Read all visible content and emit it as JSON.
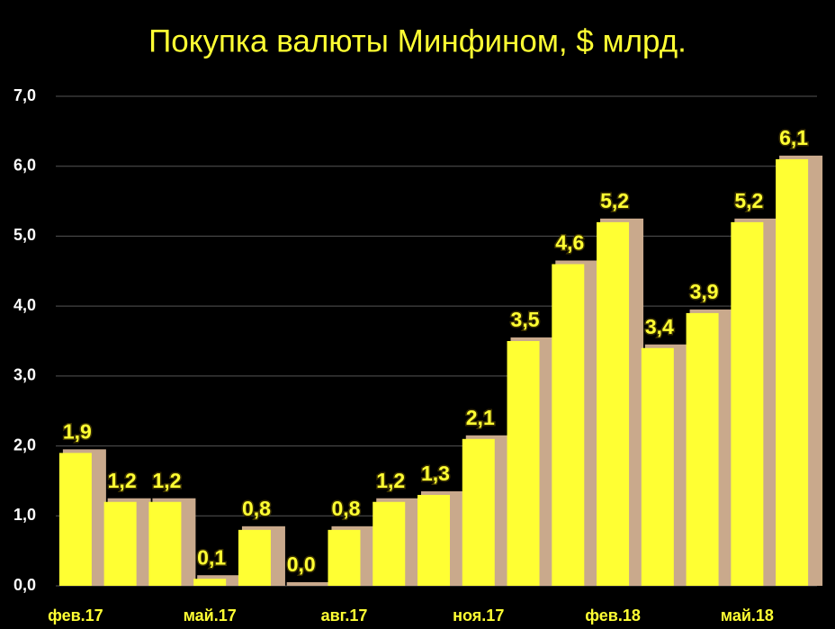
{
  "chart_data": {
    "type": "bar",
    "title": "Покупка валюты Минфином, $ млрд.",
    "categories": [
      "фев.17",
      null,
      null,
      "май.17",
      null,
      null,
      "авг.17",
      null,
      null,
      "ноя.17",
      null,
      null,
      "фев.18",
      null,
      null,
      "май.18",
      null
    ],
    "values": [
      1.9,
      1.2,
      1.2,
      0.1,
      0.8,
      0.0,
      0.8,
      1.2,
      1.3,
      2.1,
      3.5,
      4.6,
      5.2,
      3.4,
      3.9,
      5.2,
      6.1
    ],
    "value_labels": [
      "1,9",
      "1,2",
      "1,2",
      "0,1",
      "0,8",
      "0,0",
      "0,8",
      "1,2",
      "1,3",
      "2,1",
      "3,5",
      "4,6",
      "5,2",
      "3,4",
      "3,9",
      "5,2",
      "6,1"
    ],
    "color": "#ffff33",
    "ylim": [
      0,
      7
    ],
    "yticks": [
      {
        "value": 0,
        "label": "0,0"
      },
      {
        "value": 1,
        "label": "1,0"
      },
      {
        "value": 2,
        "label": "2,0"
      },
      {
        "value": 3,
        "label": "3,0"
      },
      {
        "value": 4,
        "label": "4,0"
      },
      {
        "value": 5,
        "label": "5,0"
      },
      {
        "value": 6,
        "label": "6,0"
      },
      {
        "value": 7,
        "label": "7,0"
      }
    ],
    "grid": true
  }
}
